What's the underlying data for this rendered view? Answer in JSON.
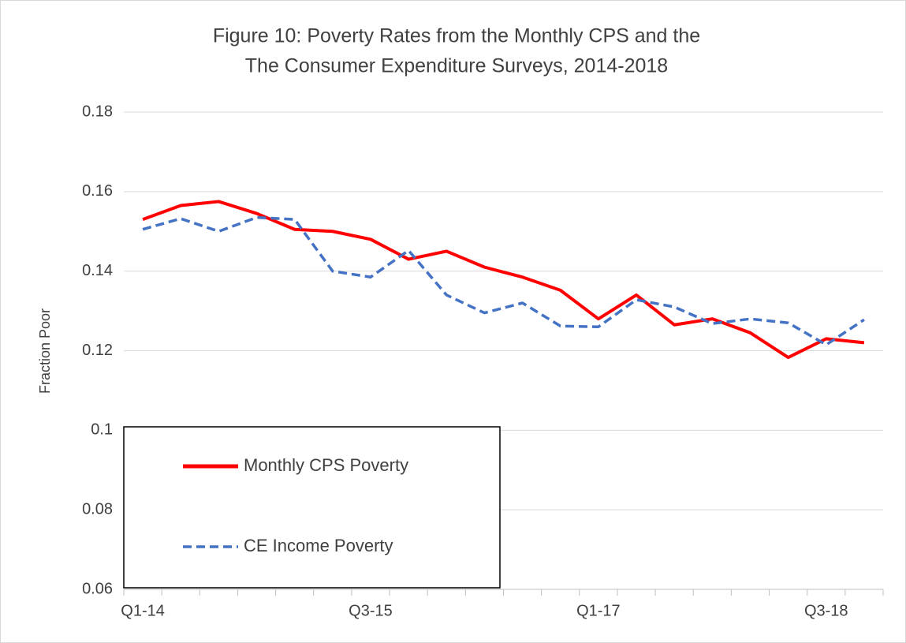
{
  "chart_data": {
    "type": "line",
    "title": [
      "Figure 10: Poverty Rates from the Monthly CPS and the",
      "The Consumer Expenditure Surveys, 2014-2018"
    ],
    "y_label": "Fraction Poor",
    "categories": [
      "Q1-14",
      null,
      null,
      null,
      null,
      null,
      "Q3-15",
      null,
      null,
      null,
      null,
      null,
      "Q1-17",
      null,
      null,
      null,
      null,
      null,
      "Q3-18",
      null
    ],
    "series": [
      {
        "name": "Monthly CPS Poverty",
        "color": "#ff0000",
        "dashed": false,
        "values": [
          0.153,
          0.1565,
          0.1575,
          0.1545,
          0.1505,
          0.15,
          0.148,
          0.143,
          0.145,
          0.141,
          0.1385,
          0.1352,
          0.128,
          0.134,
          0.1265,
          0.128,
          0.1245,
          0.1183,
          0.123,
          0.122
        ]
      },
      {
        "name": "CE Income Poverty",
        "color": "#4472c4",
        "dashed": true,
        "values": [
          0.1505,
          0.1532,
          0.15,
          0.1535,
          0.153,
          0.14,
          0.1385,
          0.1452,
          0.134,
          0.1295,
          0.132,
          0.1262,
          0.126,
          0.1328,
          0.131,
          0.1268,
          0.128,
          0.127,
          0.1215,
          0.1278
        ]
      }
    ],
    "ylim": [
      0.06,
      0.18
    ],
    "yticks": [
      0.06,
      0.08,
      0.1,
      0.12,
      0.14,
      0.16,
      0.18
    ],
    "grid": true,
    "legend": "lower left"
  }
}
